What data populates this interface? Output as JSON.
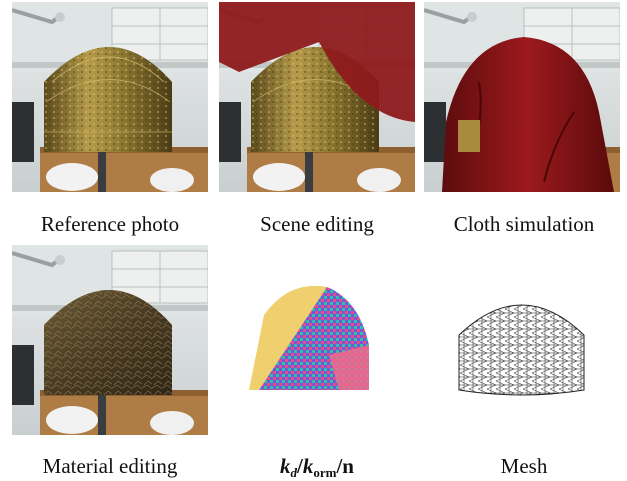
{
  "figure": {
    "panels": [
      {
        "id": "reference",
        "caption": "Reference photo"
      },
      {
        "id": "scene",
        "caption": "Scene editing"
      },
      {
        "id": "cloth",
        "caption": "Cloth simulation"
      },
      {
        "id": "material",
        "caption": "Material editing"
      },
      {
        "id": "textures",
        "caption_parts": {
          "k1": "k",
          "sub1": "d",
          "slash1": "/",
          "k2": "k",
          "sub2": "orm",
          "slash2": "/",
          "n": "n"
        }
      },
      {
        "id": "mesh",
        "caption": "Mesh"
      }
    ]
  }
}
